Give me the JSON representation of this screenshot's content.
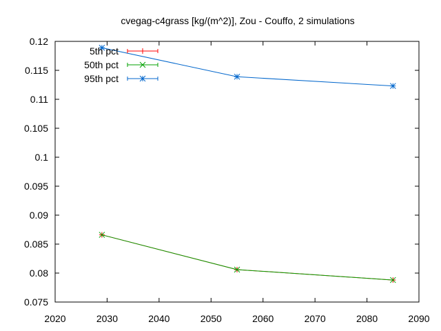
{
  "chart_data": {
    "type": "line",
    "title": "cvegag-c4grass [kg/(m^2)], Zou - Couffo, 2 simulations",
    "xlabel": "",
    "ylabel": "",
    "xlim": [
      2020,
      2090
    ],
    "ylim": [
      0.075,
      0.12
    ],
    "x_ticks": [
      2020,
      2030,
      2040,
      2050,
      2060,
      2070,
      2080,
      2090
    ],
    "y_ticks": [
      0.075,
      0.08,
      0.085,
      0.09,
      0.095,
      0.1,
      0.105,
      0.11,
      0.115,
      0.12
    ],
    "grid": false,
    "legend_position": "top-left",
    "series": [
      {
        "name": "5th pct",
        "color": "#ff0000",
        "marker": "plus",
        "x": [
          2029,
          2055,
          2085
        ],
        "values": [
          0.0866,
          0.0806,
          0.0788
        ]
      },
      {
        "name": "50th pct",
        "color": "#00a000",
        "marker": "cross",
        "x": [
          2029,
          2055,
          2085
        ],
        "values": [
          0.0866,
          0.0806,
          0.0788
        ]
      },
      {
        "name": "95th pct",
        "color": "#0066cc",
        "marker": "star",
        "x": [
          2029,
          2055,
          2085
        ],
        "values": [
          0.1189,
          0.1139,
          0.1123
        ]
      }
    ]
  }
}
